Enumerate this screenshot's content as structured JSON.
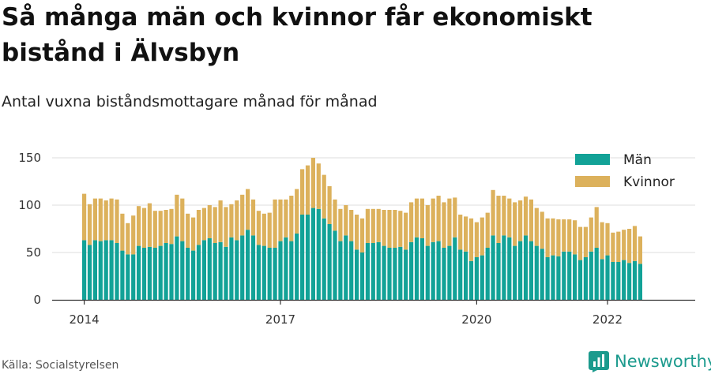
{
  "title": "Så många män och kvinnor får ekonomiskt bistånd i Älvsbyn",
  "subtitle": "Antal vuxna biståndsmottagare månad för månad",
  "source": "Källa: Socialstyrelsen",
  "brand": {
    "name": "Newsworthy",
    "icon": "newsworthy-logo-icon",
    "color": "#1b9a8d"
  },
  "chart_data": {
    "type": "bar",
    "stacked": true,
    "x_ticks": [
      "2014",
      "2017",
      "2020",
      "2022"
    ],
    "y_ticks": [
      0,
      50,
      100,
      150
    ],
    "ylim": [
      0,
      150
    ],
    "grid": true,
    "legend_position": "top-right",
    "series": [
      {
        "name": "Män",
        "color": "#12a297",
        "values": [
          63,
          58,
          63,
          62,
          63,
          63,
          60,
          52,
          48,
          48,
          57,
          55,
          56,
          55,
          57,
          60,
          59,
          67,
          62,
          55,
          52,
          58,
          63,
          65,
          60,
          61,
          56,
          66,
          63,
          68,
          74,
          68,
          58,
          57,
          55,
          55,
          62,
          66,
          62,
          70,
          90,
          90,
          97,
          96,
          86,
          80,
          73,
          62,
          68,
          62,
          53,
          50,
          60,
          60,
          61,
          57,
          55,
          55,
          56,
          53,
          61,
          66,
          65,
          57,
          61,
          62,
          55,
          57,
          66,
          53,
          51,
          41,
          45,
          47,
          55,
          68,
          60,
          68,
          66,
          57,
          62,
          68,
          62,
          57,
          54,
          45,
          47,
          46,
          51,
          51,
          48,
          42,
          45,
          51,
          55,
          43,
          47,
          40,
          40,
          42,
          39,
          41,
          38
        ]
      },
      {
        "name": "Kvinnor",
        "color": "#dcb15c",
        "values": [
          49,
          43,
          44,
          45,
          42,
          44,
          46,
          39,
          33,
          41,
          42,
          42,
          46,
          39,
          37,
          35,
          37,
          44,
          45,
          36,
          35,
          37,
          34,
          35,
          38,
          44,
          42,
          35,
          42,
          43,
          43,
          38,
          36,
          34,
          37,
          51,
          44,
          40,
          48,
          47,
          48,
          52,
          53,
          48,
          46,
          40,
          33,
          34,
          32,
          33,
          37,
          36,
          36,
          36,
          35,
          38,
          40,
          40,
          38,
          39,
          42,
          41,
          42,
          43,
          46,
          48,
          48,
          50,
          42,
          37,
          37,
          45,
          37,
          40,
          37,
          48,
          50,
          42,
          41,
          46,
          43,
          41,
          44,
          40,
          39,
          41,
          39,
          39,
          34,
          34,
          36,
          35,
          32,
          36,
          43,
          39,
          34,
          31,
          32,
          32,
          36,
          37,
          29
        ]
      }
    ]
  }
}
